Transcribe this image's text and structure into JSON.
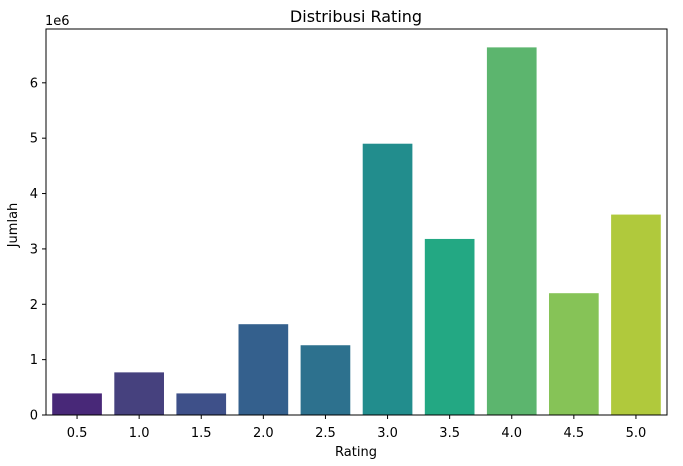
{
  "chart_data": {
    "type": "bar",
    "title": "Distribusi Rating",
    "xlabel": "Rating",
    "ylabel": "Jumlah",
    "y_scale_label": "1e6",
    "categories": [
      "0.5",
      "1.0",
      "1.5",
      "2.0",
      "2.5",
      "3.0",
      "3.5",
      "4.0",
      "4.5",
      "5.0"
    ],
    "values": [
      390000,
      770000,
      390000,
      1640000,
      1260000,
      4900000,
      3180000,
      6640000,
      2200000,
      3620000
    ],
    "colors": [
      "#482878",
      "#46417e",
      "#3e5089",
      "#34608d",
      "#2d718e",
      "#228d8d",
      "#23a883",
      "#5cb56e",
      "#86c357",
      "#b0c93c"
    ],
    "yticks": [
      0,
      1,
      2,
      3,
      4,
      5,
      6
    ],
    "ylim": [
      0,
      6972000
    ],
    "grid": false,
    "legend": "none"
  }
}
